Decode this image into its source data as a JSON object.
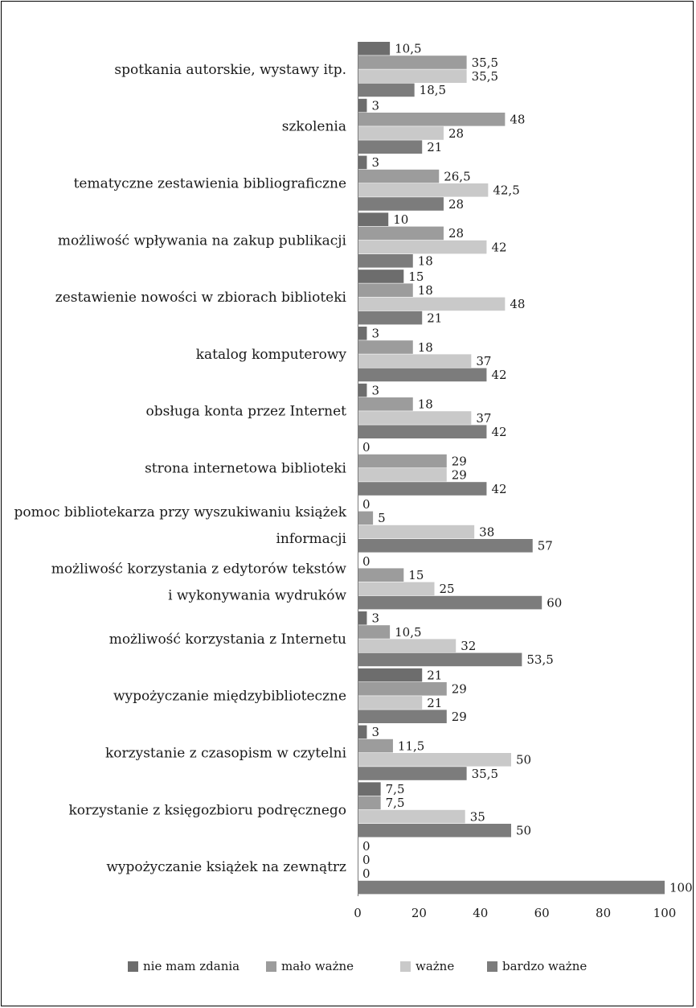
{
  "chart_data": {
    "type": "bar",
    "orientation": "horizontal",
    "title": "",
    "xlabel": "",
    "ylabel": "",
    "xlim": [
      0,
      100
    ],
    "x_ticks": [
      "0",
      "20",
      "40",
      "60",
      "80",
      "100"
    ],
    "grid": false,
    "legend_position": "bottom",
    "categories": [
      [
        "spotkania autorskie, wystawy itp."
      ],
      [
        "szkolenia"
      ],
      [
        "tematyczne zestawienia bibliograficzne"
      ],
      [
        "możliwość wpływania na zakup publikacji"
      ],
      [
        "zestawienie nowości w zbiorach biblioteki"
      ],
      [
        "katalog komputerowy"
      ],
      [
        "obsługa konta przez Internet"
      ],
      [
        "strona internetowa biblioteki"
      ],
      [
        "pomoc bibliotekarza przy wyszukiwaniu książek",
        "informacji"
      ],
      [
        "możliwość korzystania z edytorów tekstów",
        "i wykonywania wydruków"
      ],
      [
        "możliwość korzystania z Internetu"
      ],
      [
        "wypożyczanie międzybiblioteczne"
      ],
      [
        "korzystanie z czasopism w czytelni"
      ],
      [
        "korzystanie z księgozbioru podręcznego"
      ],
      [
        "wypożyczanie książek na zewnątrz"
      ]
    ],
    "series": [
      {
        "name": "nie mam zdania",
        "color": "#6d6d6d",
        "values": [
          10.5,
          3,
          3,
          10,
          15,
          3,
          3,
          0,
          0,
          0,
          3,
          21,
          3,
          7.5,
          0
        ],
        "labels": [
          "10,5",
          "3",
          "3",
          "10",
          "15",
          "3",
          "3",
          "0",
          "0",
          "0",
          "3",
          "21",
          "3",
          "7,5",
          "0"
        ]
      },
      {
        "name": "mało ważne",
        "color": "#9c9c9c",
        "values": [
          35.5,
          48,
          26.5,
          28,
          18,
          18,
          18,
          29,
          5,
          15,
          10.5,
          29,
          11.5,
          7.5,
          0
        ],
        "labels": [
          "35,5",
          "48",
          "26,5",
          "28",
          "18",
          "18",
          "18",
          "29",
          "5",
          "15",
          "10,5",
          "29",
          "11,5",
          "7,5",
          "0"
        ]
      },
      {
        "name": "ważne",
        "color": "#c9c9c9",
        "values": [
          35.5,
          28,
          42.5,
          42,
          48,
          37,
          37,
          29,
          38,
          25,
          32,
          21,
          50,
          35,
          0
        ],
        "labels": [
          "35,5",
          "28",
          "42,5",
          "42",
          "48",
          "37",
          "37",
          "29",
          "38",
          "25",
          "32",
          "21",
          "50",
          "35",
          "0"
        ]
      },
      {
        "name": "bardzo ważne",
        "color": "#7c7c7c",
        "values": [
          18.5,
          21,
          28,
          18,
          21,
          42,
          42,
          42,
          57,
          60,
          53.5,
          29,
          35.5,
          50,
          100
        ],
        "labels": [
          "18,5",
          "21",
          "28",
          "18",
          "21",
          "42",
          "42",
          "42",
          "57",
          "60",
          "53,5",
          "29",
          "35,5",
          "50",
          "100"
        ]
      }
    ]
  }
}
